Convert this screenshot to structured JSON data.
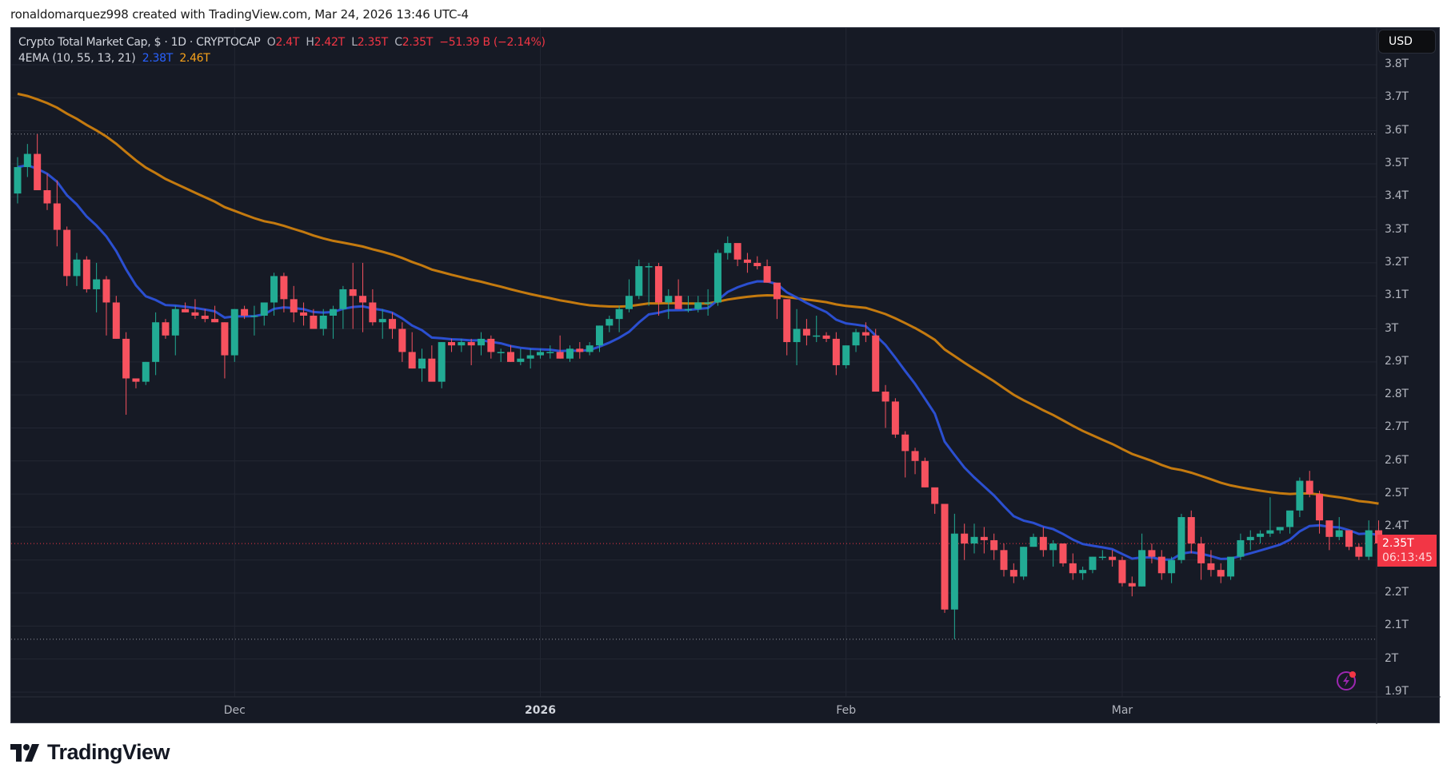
{
  "credit": "ronaldomarquez998 created with TradingView.com, Mar 24, 2026 13:46 UTC-4",
  "legend": {
    "symbol": "Crypto Total Market Cap, $ · 1D · CRYPTOCAP",
    "o_label": "O",
    "o_value": "2.4T",
    "h_label": "H",
    "h_value": "2.42T",
    "l_label": "L",
    "l_value": "2.35T",
    "c_label": "C",
    "c_value": "2.35T",
    "change": "−51.39 B (−2.14%)",
    "indicator": "4EMA (10, 55, 13, 21)",
    "ema_fast_value": "2.38T",
    "ema_slow_value": "2.46T"
  },
  "currency_button": "USD",
  "price_tag": {
    "price": "2.35T",
    "countdown": "06:13:45"
  },
  "footer": {
    "brand": "TradingView"
  },
  "colors": {
    "up": "#22ab94",
    "down": "#f7525f",
    "ema_fast": "#2b4fd0",
    "ema_slow": "#c47a0f",
    "background": "#161a25",
    "grid": "#232733",
    "axis_text": "#b2b5be"
  },
  "chart_data": {
    "type": "candlestick",
    "title": "Crypto Total Market Cap, $ · 1D · CRYPTOCAP",
    "ylabel": "USD",
    "ylim": [
      1.9,
      3.8
    ],
    "y_ticks": [
      "3.8T",
      "3.7T",
      "3.6T",
      "3.5T",
      "3.4T",
      "3.3T",
      "3.2T",
      "3.1T",
      "3T",
      "2.9T",
      "2.8T",
      "2.7T",
      "2.6T",
      "2.5T",
      "2.4T",
      "2.3T",
      "2.2T",
      "2.1T",
      "2T",
      "1.9T"
    ],
    "x_ticks": [
      {
        "label": "Dec",
        "day_index": 22,
        "bold": false
      },
      {
        "label": "2026",
        "day_index": 53,
        "bold": true
      },
      {
        "label": "Feb",
        "day_index": 84,
        "bold": false
      },
      {
        "label": "Mar",
        "day_index": 112,
        "bold": false
      }
    ],
    "start_date": "2025-11-09",
    "end_date": "2026-03-24",
    "horizontal_markers": [
      3.59,
      2.06
    ],
    "last_price": 2.35,
    "series": [
      {
        "name": "EMA fast",
        "color": "#2b4fd0",
        "last": 2.38
      },
      {
        "name": "EMA slow",
        "color": "#c47a0f",
        "last": 2.46
      }
    ],
    "ohlc": [
      [
        3.41,
        3.52,
        3.38,
        3.49
      ],
      [
        3.49,
        3.56,
        3.46,
        3.53
      ],
      [
        3.53,
        3.59,
        3.46,
        3.42
      ],
      [
        3.42,
        3.47,
        3.36,
        3.38
      ],
      [
        3.38,
        3.45,
        3.25,
        3.3
      ],
      [
        3.3,
        3.31,
        3.13,
        3.16
      ],
      [
        3.16,
        3.23,
        3.13,
        3.21
      ],
      [
        3.21,
        3.22,
        3.11,
        3.12
      ],
      [
        3.12,
        3.2,
        3.05,
        3.15
      ],
      [
        3.15,
        3.16,
        2.98,
        3.08
      ],
      [
        3.08,
        3.1,
        2.97,
        2.97
      ],
      [
        2.97,
        2.99,
        2.74,
        2.85
      ],
      [
        2.85,
        2.85,
        2.82,
        2.84
      ],
      [
        2.84,
        2.9,
        2.83,
        2.9
      ],
      [
        2.9,
        3.05,
        2.86,
        3.02
      ],
      [
        3.02,
        3.03,
        2.97,
        2.98
      ],
      [
        2.98,
        3.07,
        2.92,
        3.06
      ],
      [
        3.06,
        3.08,
        3.05,
        3.05
      ],
      [
        3.05,
        3.09,
        3.03,
        3.04
      ],
      [
        3.04,
        3.06,
        3.02,
        3.03
      ],
      [
        3.03,
        3.07,
        3.02,
        3.02
      ],
      [
        3.02,
        3.02,
        2.85,
        2.92
      ],
      [
        2.92,
        3.06,
        2.9,
        3.06
      ],
      [
        3.06,
        3.07,
        3.03,
        3.04
      ],
      [
        3.04,
        3.07,
        2.98,
        3.04
      ],
      [
        3.04,
        3.08,
        3.01,
        3.08
      ],
      [
        3.08,
        3.17,
        3.04,
        3.16
      ],
      [
        3.16,
        3.17,
        3.05,
        3.09
      ],
      [
        3.09,
        3.13,
        3.02,
        3.05
      ],
      [
        3.05,
        3.08,
        3.01,
        3.04
      ],
      [
        3.04,
        3.06,
        3.0,
        3.0
      ],
      [
        3.0,
        3.06,
        2.98,
        3.04
      ],
      [
        3.04,
        3.07,
        2.97,
        3.06
      ],
      [
        3.06,
        3.13,
        3.0,
        3.12
      ],
      [
        3.12,
        3.2,
        3.0,
        3.1
      ],
      [
        3.1,
        3.2,
        2.99,
        3.08
      ],
      [
        3.08,
        3.12,
        3.01,
        3.02
      ],
      [
        3.02,
        3.06,
        2.97,
        3.03
      ],
      [
        3.03,
        3.05,
        2.97,
        3.0
      ],
      [
        3.0,
        3.02,
        2.9,
        2.93
      ],
      [
        2.93,
        2.99,
        2.88,
        2.88
      ],
      [
        2.88,
        2.94,
        2.84,
        2.91
      ],
      [
        2.91,
        2.95,
        2.86,
        2.84
      ],
      [
        2.84,
        2.96,
        2.82,
        2.96
      ],
      [
        2.96,
        2.97,
        2.93,
        2.95
      ],
      [
        2.95,
        2.97,
        2.93,
        2.96
      ],
      [
        2.96,
        2.97,
        2.89,
        2.95
      ],
      [
        2.95,
        2.99,
        2.92,
        2.97
      ],
      [
        2.97,
        2.98,
        2.91,
        2.93
      ],
      [
        2.93,
        2.94,
        2.9,
        2.93
      ],
      [
        2.93,
        2.95,
        2.9,
        2.9
      ],
      [
        2.9,
        2.94,
        2.89,
        2.91
      ],
      [
        2.91,
        2.94,
        2.88,
        2.92
      ],
      [
        2.92,
        2.94,
        2.91,
        2.93
      ],
      [
        2.93,
        2.95,
        2.91,
        2.93
      ],
      [
        2.93,
        2.98,
        2.91,
        2.91
      ],
      [
        2.91,
        2.95,
        2.9,
        2.94
      ],
      [
        2.94,
        2.96,
        2.91,
        2.93
      ],
      [
        2.93,
        2.96,
        2.92,
        2.95
      ],
      [
        2.95,
        3.01,
        2.93,
        3.01
      ],
      [
        3.01,
        3.04,
        2.99,
        3.03
      ],
      [
        3.03,
        3.07,
        2.99,
        3.06
      ],
      [
        3.06,
        3.15,
        3.05,
        3.1
      ],
      [
        3.1,
        3.21,
        3.09,
        3.19
      ],
      [
        3.19,
        3.2,
        3.07,
        3.19
      ],
      [
        3.19,
        3.2,
        3.04,
        3.08
      ],
      [
        3.08,
        3.12,
        3.03,
        3.1
      ],
      [
        3.1,
        3.15,
        3.06,
        3.06
      ],
      [
        3.06,
        3.1,
        3.05,
        3.06
      ],
      [
        3.06,
        3.1,
        3.05,
        3.08
      ],
      [
        3.08,
        3.12,
        3.04,
        3.08
      ],
      [
        3.08,
        3.24,
        3.07,
        3.23
      ],
      [
        3.23,
        3.28,
        3.21,
        3.26
      ],
      [
        3.26,
        3.25,
        3.19,
        3.21
      ],
      [
        3.21,
        3.23,
        3.17,
        3.2
      ],
      [
        3.2,
        3.22,
        3.18,
        3.19
      ],
      [
        3.19,
        3.21,
        3.14,
        3.14
      ],
      [
        3.14,
        3.12,
        3.03,
        3.09
      ],
      [
        3.09,
        3.08,
        2.92,
        2.96
      ],
      [
        2.96,
        3.06,
        2.89,
        3.0
      ],
      [
        3.0,
        3.03,
        2.95,
        2.98
      ],
      [
        2.98,
        3.04,
        2.96,
        2.98
      ],
      [
        2.98,
        2.99,
        2.96,
        2.97
      ],
      [
        2.97,
        2.99,
        2.86,
        2.89
      ],
      [
        2.89,
        2.95,
        2.88,
        2.95
      ],
      [
        2.95,
        3.0,
        2.93,
        2.99
      ],
      [
        2.99,
        3.02,
        2.96,
        2.98
      ],
      [
        2.98,
        3.0,
        2.81,
        2.81
      ],
      [
        2.81,
        2.83,
        2.7,
        2.78
      ],
      [
        2.78,
        2.79,
        2.67,
        2.68
      ],
      [
        2.68,
        2.69,
        2.55,
        2.63
      ],
      [
        2.63,
        2.64,
        2.56,
        2.6
      ],
      [
        2.6,
        2.61,
        2.52,
        2.52
      ],
      [
        2.52,
        2.51,
        2.44,
        2.47
      ],
      [
        2.47,
        2.47,
        2.14,
        2.15
      ],
      [
        2.15,
        2.44,
        2.06,
        2.38
      ],
      [
        2.38,
        2.41,
        2.3,
        2.35
      ],
      [
        2.35,
        2.41,
        2.32,
        2.37
      ],
      [
        2.37,
        2.4,
        2.32,
        2.36
      ],
      [
        2.36,
        2.38,
        2.3,
        2.33
      ],
      [
        2.33,
        2.35,
        2.25,
        2.27
      ],
      [
        2.27,
        2.29,
        2.23,
        2.25
      ],
      [
        2.25,
        2.34,
        2.24,
        2.34
      ],
      [
        2.34,
        2.38,
        2.34,
        2.37
      ],
      [
        2.37,
        2.4,
        2.31,
        2.33
      ],
      [
        2.33,
        2.36,
        2.28,
        2.35
      ],
      [
        2.35,
        2.35,
        2.28,
        2.29
      ],
      [
        2.29,
        2.32,
        2.24,
        2.26
      ],
      [
        2.26,
        2.28,
        2.24,
        2.27
      ],
      [
        2.27,
        2.31,
        2.26,
        2.31
      ],
      [
        2.31,
        2.33,
        2.3,
        2.31
      ],
      [
        2.31,
        2.33,
        2.28,
        2.3
      ],
      [
        2.3,
        2.31,
        2.22,
        2.23
      ],
      [
        2.23,
        2.25,
        2.19,
        2.22
      ],
      [
        2.22,
        2.38,
        2.22,
        2.33
      ],
      [
        2.33,
        2.35,
        2.29,
        2.31
      ],
      [
        2.31,
        2.33,
        2.24,
        2.26
      ],
      [
        2.26,
        2.31,
        2.23,
        2.3
      ],
      [
        2.3,
        2.44,
        2.29,
        2.43
      ],
      [
        2.43,
        2.45,
        2.32,
        2.35
      ],
      [
        2.35,
        2.37,
        2.24,
        2.29
      ],
      [
        2.29,
        2.33,
        2.25,
        2.27
      ],
      [
        2.27,
        2.29,
        2.23,
        2.25
      ],
      [
        2.25,
        2.3,
        2.24,
        2.31
      ],
      [
        2.31,
        2.38,
        2.3,
        2.36
      ],
      [
        2.36,
        2.39,
        2.33,
        2.37
      ],
      [
        2.37,
        2.39,
        2.35,
        2.38
      ],
      [
        2.38,
        2.49,
        2.37,
        2.39
      ],
      [
        2.39,
        2.4,
        2.38,
        2.4
      ],
      [
        2.4,
        2.43,
        2.38,
        2.45
      ],
      [
        2.45,
        2.55,
        2.43,
        2.54
      ],
      [
        2.54,
        2.57,
        2.49,
        2.5
      ],
      [
        2.5,
        2.51,
        2.38,
        2.42
      ],
      [
        2.42,
        2.4,
        2.33,
        2.37
      ],
      [
        2.37,
        2.43,
        2.36,
        2.39
      ],
      [
        2.39,
        2.39,
        2.33,
        2.34
      ],
      [
        2.34,
        2.35,
        2.3,
        2.31
      ],
      [
        2.31,
        2.42,
        2.3,
        2.39
      ],
      [
        2.39,
        2.42,
        2.35,
        2.35
      ]
    ]
  }
}
